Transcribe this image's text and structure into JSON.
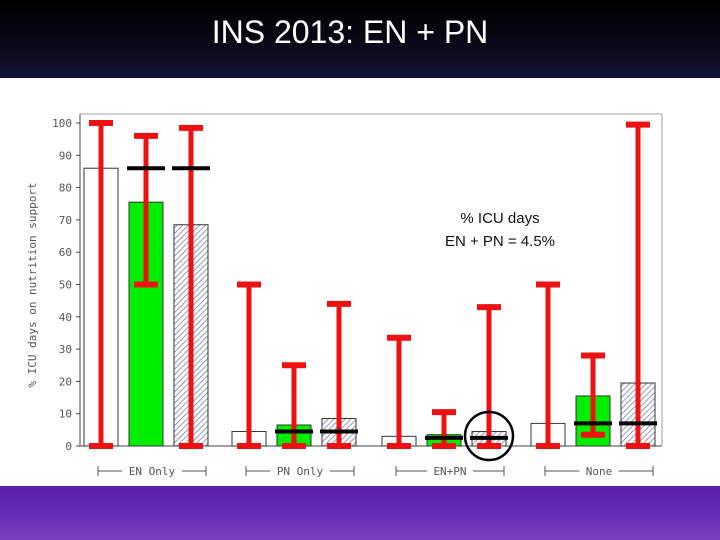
{
  "slide": {
    "title": "INS 2013: EN + PN"
  },
  "annotation": {
    "line1": "% ICU days",
    "line2": "EN + PN = 4.5%"
  },
  "chart_data": {
    "type": "bar",
    "ylabel": "% ICU days on nutrition support",
    "ylim": [
      0,
      100
    ],
    "yticks": [
      0,
      10,
      20,
      30,
      40,
      50,
      60,
      70,
      80,
      90,
      100
    ],
    "groups": [
      "EN Only",
      "PN Only",
      "EN+PN",
      "None"
    ],
    "series_styles": [
      {
        "fill": "#ffffff",
        "pattern": "none"
      },
      {
        "fill": "#00ee00",
        "pattern": "none"
      },
      {
        "fill": "#ffffff",
        "pattern": "hatch"
      }
    ],
    "bars": [
      {
        "group": 0,
        "series": 0,
        "value": 86
      },
      {
        "group": 0,
        "series": 1,
        "value": 75.5
      },
      {
        "group": 0,
        "series": 2,
        "value": 68.5
      },
      {
        "group": 1,
        "series": 0,
        "value": 4.5
      },
      {
        "group": 1,
        "series": 1,
        "value": 6.5
      },
      {
        "group": 1,
        "series": 2,
        "value": 8.5
      },
      {
        "group": 2,
        "series": 0,
        "value": 3
      },
      {
        "group": 2,
        "series": 1,
        "value": 3.5
      },
      {
        "group": 2,
        "series": 2,
        "value": 4.5
      },
      {
        "group": 3,
        "series": 0,
        "value": 7
      },
      {
        "group": 3,
        "series": 1,
        "value": 15.5
      },
      {
        "group": 3,
        "series": 2,
        "value": 19.5
      }
    ],
    "error_bars": [
      {
        "group": 0,
        "series": 0,
        "low": 0,
        "high": 100,
        "median": null
      },
      {
        "group": 0,
        "series": 1,
        "low": 50,
        "high": 96,
        "median": 86
      },
      {
        "group": 0,
        "series": 2,
        "low": 0,
        "high": 98.5,
        "median": 86
      },
      {
        "group": 1,
        "series": 0,
        "low": 0,
        "high": 50,
        "median": null
      },
      {
        "group": 1,
        "series": 1,
        "low": 0,
        "high": 25,
        "median": 4.5
      },
      {
        "group": 1,
        "series": 2,
        "low": 0,
        "high": 44,
        "median": 4.5
      },
      {
        "group": 2,
        "series": 0,
        "low": 0,
        "high": 33.5,
        "median": null
      },
      {
        "group": 2,
        "series": 1,
        "low": 0,
        "high": 10.5,
        "median": 2.5
      },
      {
        "group": 2,
        "series": 2,
        "low": 0,
        "high": 43,
        "median": 2.5
      },
      {
        "group": 3,
        "series": 0,
        "low": 0,
        "high": 50,
        "median": null
      },
      {
        "group": 3,
        "series": 1,
        "low": 3.5,
        "high": 28,
        "median": 7
      },
      {
        "group": 3,
        "series": 2,
        "low": 0,
        "high": 99.5,
        "median": 7
      }
    ],
    "highlight": {
      "group": 2,
      "series": 2,
      "shape": "circle"
    },
    "colors": {
      "error_bar": "#ee1111",
      "median": "#000000",
      "green_bar": "#00ee00"
    }
  }
}
